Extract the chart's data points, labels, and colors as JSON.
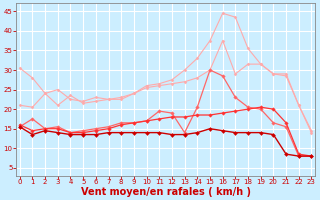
{
  "background_color": "#cceeff",
  "grid_color": "#ffffff",
  "xlabel": "Vent moyen/en rafales ( km/h )",
  "xlabel_color": "#cc0000",
  "xlabel_fontsize": 7,
  "xticks": [
    0,
    1,
    2,
    3,
    4,
    5,
    6,
    7,
    8,
    9,
    10,
    11,
    12,
    13,
    14,
    15,
    16,
    17,
    18,
    19,
    20,
    21,
    22,
    23
  ],
  "yticks": [
    5,
    10,
    15,
    20,
    25,
    30,
    35,
    40,
    45
  ],
  "ylim": [
    3,
    47
  ],
  "xlim": [
    -0.3,
    23.3
  ],
  "tick_color": "#cc0000",
  "tick_fontsize": 5,
  "series": [
    {
      "color": "#ffaaaa",
      "linewidth": 0.8,
      "marker": "D",
      "markersize": 1.5,
      "data": [
        30.5,
        28.0,
        24.0,
        25.0,
        22.5,
        22.0,
        23.0,
        22.5,
        22.5,
        24.0,
        26.0,
        26.5,
        27.5,
        30.0,
        33.0,
        37.5,
        44.5,
        43.5,
        35.5,
        31.5,
        29.0,
        29.0,
        21.0,
        14.0
      ]
    },
    {
      "color": "#ffaaaa",
      "linewidth": 0.8,
      "marker": "D",
      "markersize": 1.5,
      "data": [
        21.0,
        20.5,
        24.0,
        21.0,
        23.5,
        21.5,
        22.0,
        22.5,
        23.0,
        24.0,
        25.5,
        26.0,
        26.5,
        27.0,
        28.0,
        30.0,
        37.5,
        29.0,
        31.5,
        31.5,
        29.0,
        28.5,
        21.0,
        14.5
      ]
    },
    {
      "color": "#ff6666",
      "linewidth": 0.9,
      "marker": "D",
      "markersize": 1.8,
      "data": [
        15.5,
        17.5,
        15.0,
        15.5,
        14.0,
        14.5,
        15.0,
        15.5,
        16.5,
        16.5,
        17.0,
        19.5,
        19.0,
        14.0,
        20.5,
        30.0,
        28.5,
        23.0,
        20.5,
        20.0,
        16.5,
        15.5,
        8.0,
        8.0
      ]
    },
    {
      "color": "#ff3333",
      "linewidth": 0.9,
      "marker": "D",
      "markersize": 1.8,
      "data": [
        16.0,
        14.5,
        15.0,
        15.0,
        14.0,
        14.0,
        14.5,
        15.0,
        16.0,
        16.5,
        17.0,
        17.5,
        18.0,
        18.0,
        18.5,
        18.5,
        19.0,
        19.5,
        20.0,
        20.5,
        20.0,
        16.5,
        8.5,
        8.0
      ]
    },
    {
      "color": "#cc0000",
      "linewidth": 1.0,
      "marker": "D",
      "markersize": 2.0,
      "data": [
        15.5,
        13.5,
        14.5,
        14.0,
        13.5,
        13.5,
        13.5,
        14.0,
        14.0,
        14.0,
        14.0,
        14.0,
        13.5,
        13.5,
        14.0,
        15.0,
        14.5,
        14.0,
        14.0,
        14.0,
        13.5,
        8.5,
        8.0,
        8.0
      ]
    }
  ]
}
